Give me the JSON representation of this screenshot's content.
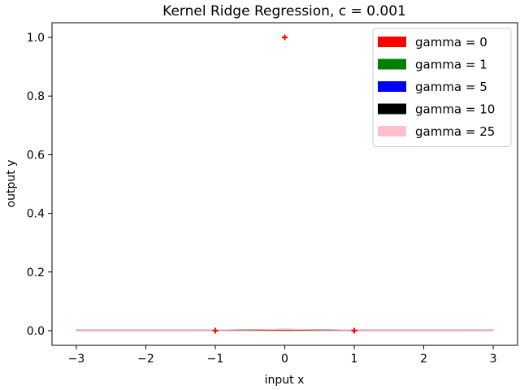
{
  "chart_data": {
    "type": "line",
    "title": "Kernel Ridge Regression, c = 0.001",
    "xlabel": "input x",
    "ylabel": "output y",
    "xlim": [
      -3.35,
      3.35
    ],
    "ylim": [
      -0.05,
      1.05
    ],
    "xticks": [
      -3,
      -2,
      -1,
      0,
      1,
      2,
      3
    ],
    "xtick_labels": [
      "−3",
      "−2",
      "−1",
      "0",
      "1",
      "2",
      "3"
    ],
    "yticks": [
      0.0,
      0.2,
      0.4,
      0.6,
      0.8,
      1.0
    ],
    "ytick_labels": [
      "0.0",
      "0.2",
      "0.4",
      "0.6",
      "0.8",
      "1.0"
    ],
    "grid": false,
    "legend_position": "top-right",
    "training_points": {
      "x": [
        -1,
        0,
        1
      ],
      "y": [
        0,
        1,
        0
      ],
      "marker": "+",
      "color": "#ff0000"
    },
    "x": [
      -3,
      -2.5,
      -2,
      -1.5,
      -1,
      -0.5,
      0,
      0.5,
      1,
      1.5,
      2,
      2.5,
      3
    ],
    "series": [
      {
        "name": "gamma = 0",
        "color": "#ff0000",
        "values": [
          0.001,
          0.001,
          0.001,
          0.001,
          0.001,
          0.001,
          0.001,
          0.001,
          0.001,
          0.001,
          0.001,
          0.001,
          0.001
        ]
      },
      {
        "name": "gamma = 1",
        "color": "#008000",
        "values": [
          0.002,
          0.002,
          0.002,
          0.002,
          0.002,
          0.002,
          0.003,
          0.002,
          0.002,
          0.002,
          0.002,
          0.002,
          0.002
        ]
      },
      {
        "name": "gamma = 5",
        "color": "#0000ff",
        "values": [
          0.002,
          0.002,
          0.002,
          0.002,
          0.002,
          0.003,
          0.004,
          0.003,
          0.002,
          0.002,
          0.002,
          0.002,
          0.002
        ]
      },
      {
        "name": "gamma = 10",
        "color": "#000000",
        "values": [
          0.002,
          0.002,
          0.002,
          0.002,
          0.002,
          0.003,
          0.004,
          0.003,
          0.002,
          0.002,
          0.002,
          0.002,
          0.002
        ]
      },
      {
        "name": "gamma = 25",
        "color": "#ffc0cb",
        "values": [
          0.002,
          0.002,
          0.002,
          0.002,
          0.002,
          0.003,
          0.004,
          0.003,
          0.002,
          0.002,
          0.002,
          0.002,
          0.002
        ]
      }
    ]
  }
}
